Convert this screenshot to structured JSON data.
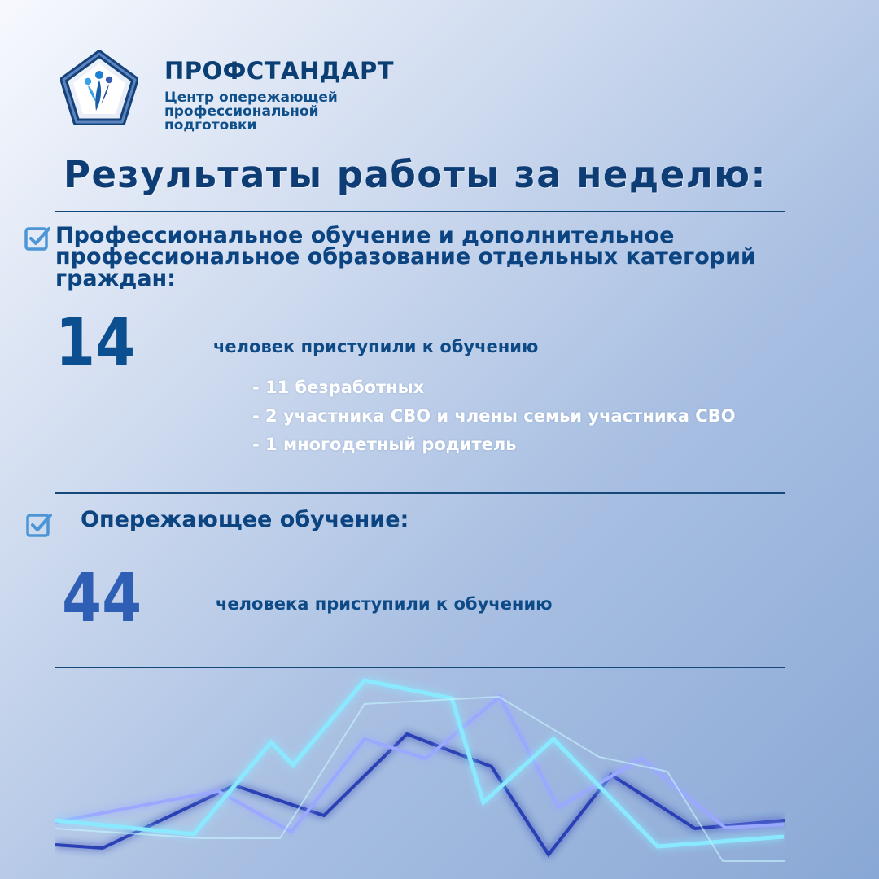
{
  "brand": {
    "title": "ПРОФСТАНДАРТ",
    "subtitle_lines": [
      "Центр опережающей",
      "профессиональной",
      "подготовки"
    ]
  },
  "heading": "Результаты работы за неделю:",
  "sections": [
    {
      "title": "Профессиональное обучение и дополнительное профессиональное образование отдельных категорий граждан:",
      "number": "14",
      "label": "человек приступили к обучению",
      "details": [
        "- 11 безработных",
        "- 2 участника СВО и члены семьи участника СВО",
        "- 1 многодетный родитель"
      ]
    },
    {
      "title": "Опережающее обучение:",
      "number": "44",
      "label": "человека приступили к обучению"
    }
  ],
  "colors": {
    "brand_dark": "#0b3f73",
    "number_14": "#0b4f90",
    "number_44": "#2f5fb5",
    "check": "#4d96d6",
    "line_bright": "#9ef0ff",
    "line_dark": "#2b3fb5"
  },
  "icons": {
    "logo": "pentagon-people-logo",
    "check": "checkbox-checked-icon"
  }
}
